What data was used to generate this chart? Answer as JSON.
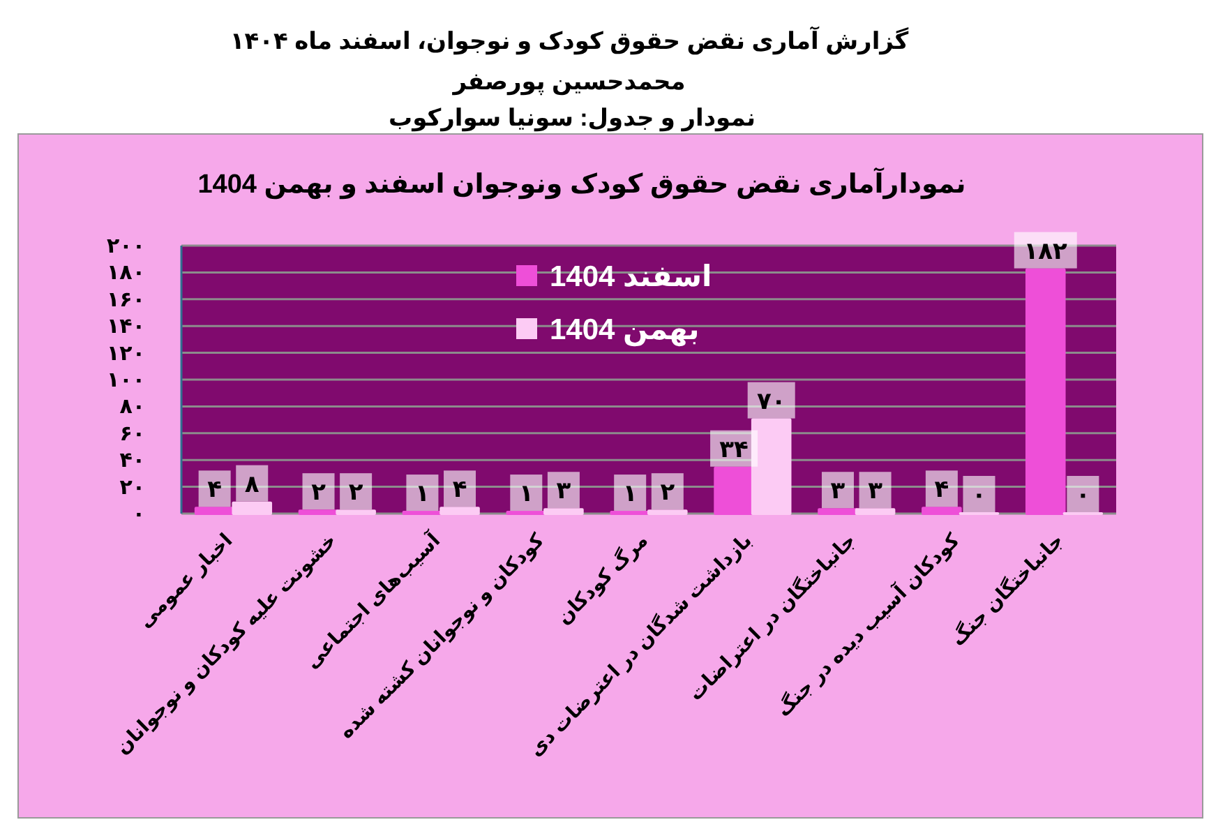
{
  "chart_data": {
    "type": "bar",
    "title": "گزارش آماری نقض حقوق کودک و نوجوان، اسفند ماه ۱۴۰۴",
    "subtitle": "محمدحسین پورصفر",
    "annotations": [
      "نمودار و جدول: سونیا سوارکوب",
      "نمودارآماری نقض حقوق کودک ونوجوان اسفند و بهمن 1404"
    ],
    "categories": [
      "اخبار عمومی",
      "خشونت علیه کودکان و نوجوانان",
      "آسیب‌های اجتماعی",
      "کودکان و نوجوانان کشته شده",
      "مرگ کودکان",
      "بازداشت شدگان در اعترضات دی",
      "جانباختگان در اعتراضات",
      "کودکان آسیب دیده در جنگ",
      "جانباختگان جنگ"
    ],
    "series": [
      {
        "name": "اسفند 1404",
        "color": "#ee4fd8",
        "values": [
          4,
          2,
          1,
          1,
          1,
          34,
          3,
          4,
          182
        ],
        "value_labels": [
          "۴",
          "۲",
          "۱",
          "۱",
          "۱",
          "۳۴",
          "۳",
          "۴",
          "۱۸۲"
        ]
      },
      {
        "name": "بهمن 1404",
        "color": "#fccbf4",
        "values": [
          8,
          2,
          4,
          3,
          2,
          70,
          3,
          0,
          0
        ],
        "value_labels": [
          "۸",
          "۲",
          "۴",
          "۳",
          "۲",
          "۷۰",
          "۳",
          "۰",
          "۰"
        ]
      }
    ],
    "ylim": [
      0,
      200
    ],
    "yticks": [
      {
        "value": 0,
        "label": "۰"
      },
      {
        "value": 20,
        "label": "۲۰"
      },
      {
        "value": 40,
        "label": "۴۰"
      },
      {
        "value": 60,
        "label": "۶۰"
      },
      {
        "value": 80,
        "label": "۸۰"
      },
      {
        "value": 100,
        "label": "۱۰۰"
      },
      {
        "value": 120,
        "label": "۱۲۰"
      },
      {
        "value": 140,
        "label": "۱۴۰"
      },
      {
        "value": 160,
        "label": "۱۶۰"
      },
      {
        "value": 180,
        "label": "۱۸۰"
      },
      {
        "value": 200,
        "label": "۲۰۰"
      }
    ],
    "grid": "y",
    "legend": "top"
  }
}
